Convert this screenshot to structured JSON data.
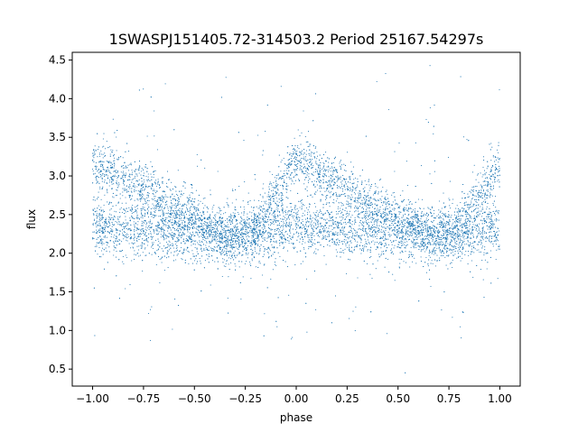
{
  "chart_data": {
    "type": "scatter",
    "title": "1SWASPJ151405.72-314503.2 Period 25167.54297s",
    "xlabel": "phase",
    "ylabel": "flux",
    "xlim": [
      -1.1,
      1.1
    ],
    "ylim": [
      0.28,
      4.6
    ],
    "xticks": [
      -1.0,
      -0.75,
      -0.5,
      -0.25,
      0.0,
      0.25,
      0.5,
      0.75,
      1.0
    ],
    "xtick_labels": [
      "−1.00",
      "−0.75",
      "−0.50",
      "−0.25",
      "0.00",
      "0.25",
      "0.50",
      "0.75",
      "1.00"
    ],
    "yticks": [
      0.5,
      1.0,
      1.5,
      2.0,
      2.5,
      3.0,
      3.5,
      4.0,
      4.5
    ],
    "ytick_labels": [
      "0.5",
      "1.0",
      "1.5",
      "2.0",
      "2.5",
      "3.0",
      "3.5",
      "4.0",
      "4.5"
    ],
    "grid": false,
    "legend": "none",
    "point_color": "#1f77b4",
    "phase_range": [
      -1.0,
      1.0
    ],
    "upper_branch_profile": [
      [
        -1.0,
        3.15
      ],
      [
        -0.9,
        3.05
      ],
      [
        -0.8,
        2.9
      ],
      [
        -0.7,
        2.75
      ],
      [
        -0.6,
        2.6
      ],
      [
        -0.5,
        2.45
      ],
      [
        -0.4,
        2.3
      ],
      [
        -0.3,
        2.2
      ],
      [
        -0.2,
        2.35
      ],
      [
        -0.1,
        2.8
      ],
      [
        0.0,
        3.2
      ],
      [
        0.1,
        3.05
      ],
      [
        0.2,
        2.9
      ],
      [
        0.3,
        2.75
      ],
      [
        0.4,
        2.6
      ],
      [
        0.5,
        2.45
      ],
      [
        0.6,
        2.3
      ],
      [
        0.7,
        2.2
      ],
      [
        0.8,
        2.35
      ],
      [
        0.9,
        2.8
      ],
      [
        1.0,
        3.15
      ]
    ],
    "lower_branch_profile": [
      [
        -1.0,
        2.35
      ],
      [
        -0.75,
        2.3
      ],
      [
        -0.5,
        2.25
      ],
      [
        -0.25,
        2.2
      ],
      [
        0.0,
        2.35
      ],
      [
        0.25,
        2.3
      ],
      [
        0.5,
        2.25
      ],
      [
        0.75,
        2.2
      ],
      [
        1.0,
        2.35
      ]
    ]
  }
}
